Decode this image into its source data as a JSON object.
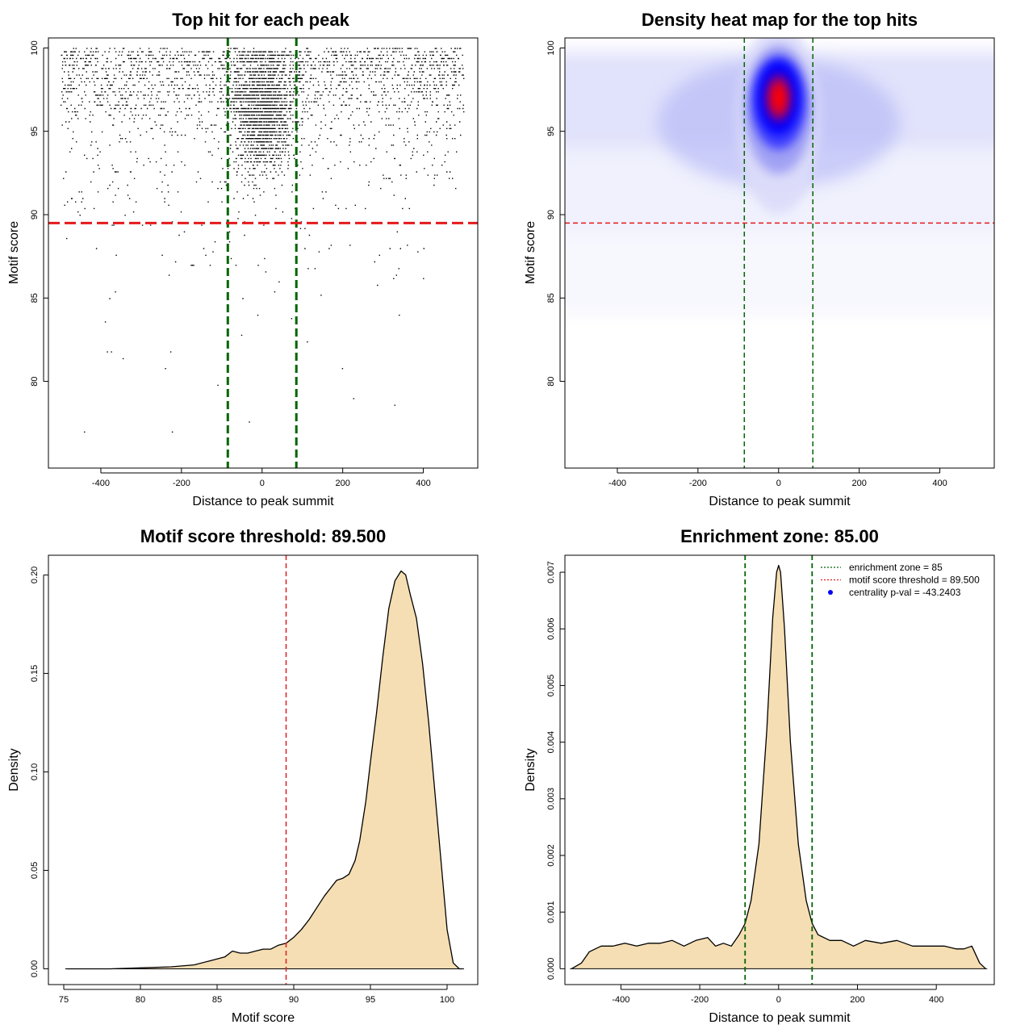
{
  "chart_data": [
    {
      "type": "scatter",
      "title": "Top hit for each peak",
      "xlabel": "Distance to peak summit",
      "ylabel": "Motif score",
      "xlim": [
        -530,
        535
      ],
      "ylim": [
        74.8,
        100.6
      ],
      "xticks": [
        -400,
        -200,
        0,
        200,
        400
      ],
      "yticks": [
        80,
        85,
        90,
        95,
        100
      ],
      "threshold_y": 89.5,
      "zone_x": [
        -85,
        85
      ],
      "colors": {
        "points": "#000000",
        "threshold": "#e31a1c",
        "zone": "#006400"
      },
      "point_distribution": {
        "background_points": 2300,
        "central_points": 2000,
        "central_sd": 40,
        "score_mode": 97
      }
    },
    {
      "type": "heatmap",
      "title": "Density heat map for the top hits",
      "xlabel": "Distance to peak summit",
      "ylabel": "Motif score",
      "xlim": [
        -530,
        535
      ],
      "ylim": [
        74.8,
        100.6
      ],
      "xticks": [
        -400,
        -200,
        0,
        200,
        400
      ],
      "yticks": [
        80,
        85,
        90,
        95,
        100
      ],
      "threshold_y": 89.5,
      "zone_x": [
        -85,
        85
      ],
      "peak": {
        "x": 0,
        "y": 97
      },
      "colors": {
        "low": "#ffffff",
        "mid": "#0000ff",
        "high": "#ff0000",
        "threshold": "#e31a1c",
        "zone": "#006400"
      }
    },
    {
      "type": "area",
      "title": "Motif score threshold: 89.500",
      "xlabel": "Motif score",
      "ylabel": "Density",
      "xlim": [
        74,
        102
      ],
      "ylim": [
        -0.008,
        0.21
      ],
      "xticks": [
        75,
        80,
        85,
        90,
        95,
        100
      ],
      "yticks": [
        0.0,
        0.05,
        0.1,
        0.15,
        0.2
      ],
      "ytick_labels": [
        "0.00",
        "0.05",
        "0.10",
        "0.15",
        "0.20"
      ],
      "threshold_x": 89.5,
      "x": [
        75.2,
        78,
        80,
        82,
        83.5,
        84.5,
        85.5,
        86,
        86.5,
        87,
        87.5,
        88,
        88.5,
        89,
        89.5,
        90,
        90.5,
        91,
        91.5,
        92,
        92.5,
        92.8,
        93.2,
        93.6,
        94,
        94.3,
        94.7,
        95,
        95.4,
        95.8,
        96.2,
        96.6,
        97,
        97.3,
        97.6,
        98,
        98.4,
        98.8,
        99.2,
        99.6,
        100,
        100.4,
        100.8,
        101
      ],
      "y": [
        0.0,
        0.0,
        0.0005,
        0.001,
        0.002,
        0.004,
        0.006,
        0.009,
        0.008,
        0.008,
        0.009,
        0.01,
        0.01,
        0.012,
        0.013,
        0.016,
        0.02,
        0.025,
        0.031,
        0.037,
        0.042,
        0.045,
        0.046,
        0.048,
        0.055,
        0.065,
        0.085,
        0.105,
        0.13,
        0.158,
        0.183,
        0.197,
        0.202,
        0.2,
        0.19,
        0.178,
        0.155,
        0.125,
        0.09,
        0.055,
        0.02,
        0.003,
        0.0,
        0.0
      ],
      "colors": {
        "fill": "#f5deb3",
        "line": "#000000",
        "threshold": "#e31a1c"
      }
    },
    {
      "type": "area",
      "title": "Enrichment zone: 85.00",
      "xlabel": "Distance to peak summit",
      "ylabel": "Density",
      "xlim": [
        -542,
        547
      ],
      "ylim": [
        -0.00028,
        0.0073
      ],
      "xticks": [
        -400,
        -200,
        0,
        200,
        400
      ],
      "yticks": [
        0.0,
        0.001,
        0.002,
        0.003,
        0.004,
        0.005,
        0.006,
        0.007
      ],
      "ytick_labels": [
        "0.000",
        "0.001",
        "0.002",
        "0.003",
        "0.004",
        "0.005",
        "0.006",
        "0.007"
      ],
      "zone_x": [
        -85,
        85
      ],
      "x": [
        -525,
        -500,
        -480,
        -450,
        -420,
        -390,
        -360,
        -330,
        -300,
        -270,
        -240,
        -210,
        -180,
        -160,
        -140,
        -120,
        -100,
        -85,
        -70,
        -50,
        -30,
        -15,
        -5,
        0,
        5,
        15,
        30,
        50,
        70,
        85,
        100,
        130,
        160,
        190,
        220,
        260,
        300,
        340,
        380,
        420,
        450,
        470,
        490,
        510,
        525
      ],
      "y": [
        0.0,
        0.0001,
        0.0003,
        0.0004,
        0.0004,
        0.00045,
        0.0004,
        0.00045,
        0.00045,
        0.0005,
        0.0004,
        0.0005,
        0.00055,
        0.0004,
        0.00045,
        0.0004,
        0.0006,
        0.0008,
        0.0012,
        0.0022,
        0.0042,
        0.0062,
        0.007,
        0.00712,
        0.007,
        0.006,
        0.004,
        0.0022,
        0.0012,
        0.0008,
        0.0006,
        0.0005,
        0.0005,
        0.0004,
        0.0005,
        0.00045,
        0.0005,
        0.0004,
        0.0004,
        0.0004,
        0.00035,
        0.00035,
        0.0004,
        0.0001,
        0.0
      ],
      "legend": [
        {
          "label": "enrichment zone = 85",
          "color": "#006400",
          "style": "dotted-line"
        },
        {
          "label": "motif score threshold = 89.500",
          "color": "#e31a1c",
          "style": "dotted-line"
        },
        {
          "label": "centrality p-val = -43.2403",
          "color": "#0000ff",
          "style": "dot"
        }
      ],
      "legend_position": "top-right",
      "colors": {
        "fill": "#f5deb3",
        "line": "#000000",
        "zone": "#006400"
      }
    }
  ]
}
